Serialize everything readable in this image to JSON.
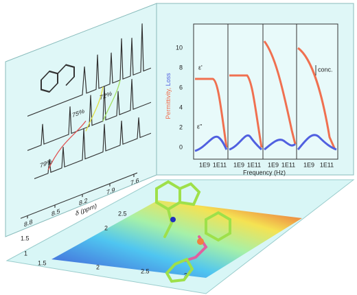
{
  "nmr_panel": {
    "labels": [
      "79%",
      "75%",
      "72%"
    ],
    "xticks": [
      "8.8",
      "8.5",
      "8.2",
      "7.9",
      "7.6"
    ],
    "xlabel": "δ (ppm)"
  },
  "dielectric_panel": {
    "ylabel_1": "Permittivity,",
    "ylabel_2": "Loss",
    "yticks": [
      "0",
      "2",
      "4",
      "6",
      "8",
      "10"
    ],
    "xticks": [
      "1E9",
      "1E11",
      "1E9",
      "1E11",
      "1E9",
      "1E11",
      "1E9",
      "1E11"
    ],
    "xlabel": "Frequency (Hz)",
    "eps_real": "ε'",
    "eps_loss": "ε''",
    "annotation": "conc."
  },
  "heatmap_panel": {
    "yticks": [
      "2.5",
      "2",
      "1.5",
      "1"
    ],
    "xticks": [
      "1.5",
      "2",
      "2.5",
      "3"
    ]
  }
}
